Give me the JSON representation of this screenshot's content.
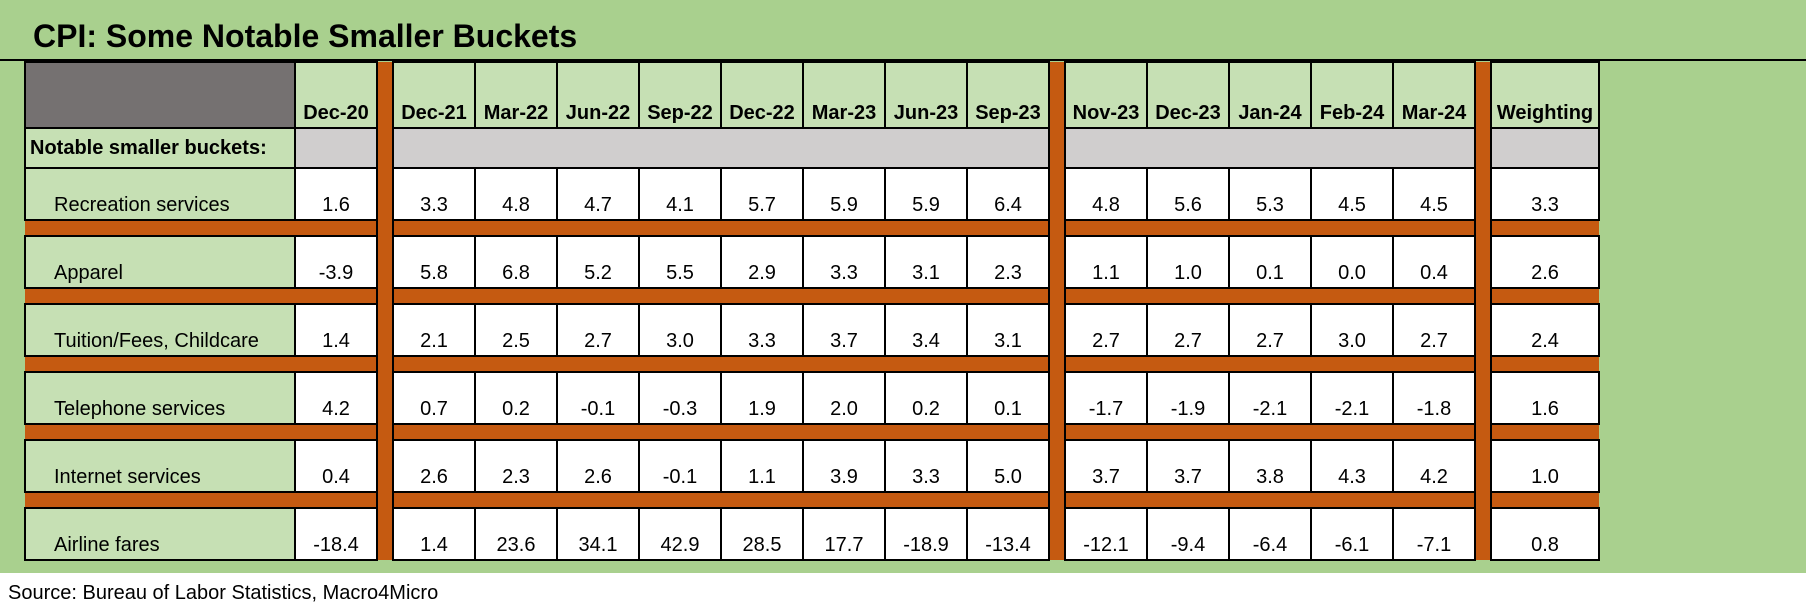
{
  "title": "CPI: Some Notable Smaller Buckets",
  "source": "Source: Bureau of Labor Statistics, Macro4Micro",
  "table": {
    "columns": [
      "Dec-20",
      "Dec-21",
      "Mar-22",
      "Jun-22",
      "Sep-22",
      "Dec-22",
      "Mar-23",
      "Jun-23",
      "Sep-23",
      "Nov-23",
      "Dec-23",
      "Jan-24",
      "Feb-24",
      "Mar-24",
      "Weighting"
    ],
    "section_label": "Notable smaller buckets:",
    "rows": [
      {
        "label": "Recreation services",
        "values": [
          "1.6",
          "3.3",
          "4.8",
          "4.7",
          "4.1",
          "5.7",
          "5.9",
          "5.9",
          "6.4",
          "4.8",
          "5.6",
          "5.3",
          "4.5",
          "4.5",
          "3.3"
        ]
      },
      {
        "label": "Apparel",
        "values": [
          "-3.9",
          "5.8",
          "6.8",
          "5.2",
          "5.5",
          "2.9",
          "3.3",
          "3.1",
          "2.3",
          "1.1",
          "1.0",
          "0.1",
          "0.0",
          "0.4",
          "2.6"
        ]
      },
      {
        "label": "Tuition/Fees, Childcare",
        "values": [
          "1.4",
          "2.1",
          "2.5",
          "2.7",
          "3.0",
          "3.3",
          "3.7",
          "3.4",
          "3.1",
          "2.7",
          "2.7",
          "2.7",
          "3.0",
          "2.7",
          "2.4"
        ]
      },
      {
        "label": "Telephone services",
        "values": [
          "4.2",
          "0.7",
          "0.2",
          "-0.1",
          "-0.3",
          "1.9",
          "2.0",
          "0.2",
          "0.1",
          "-1.7",
          "-1.9",
          "-2.1",
          "-2.1",
          "-1.8",
          "1.6"
        ]
      },
      {
        "label": "Internet services",
        "values": [
          "0.4",
          "2.6",
          "2.3",
          "2.6",
          "-0.1",
          "1.1",
          "3.9",
          "3.3",
          "5.0",
          "3.7",
          "3.7",
          "3.8",
          "4.3",
          "4.2",
          "1.0"
        ]
      },
      {
        "label": "Airline fares",
        "values": [
          "-18.4",
          "1.4",
          "23.6",
          "34.1",
          "42.9",
          "28.5",
          "17.7",
          "-18.9",
          "-13.4",
          "-12.1",
          "-9.4",
          "-6.4",
          "-6.1",
          "-7.1",
          "0.8"
        ]
      }
    ]
  }
}
